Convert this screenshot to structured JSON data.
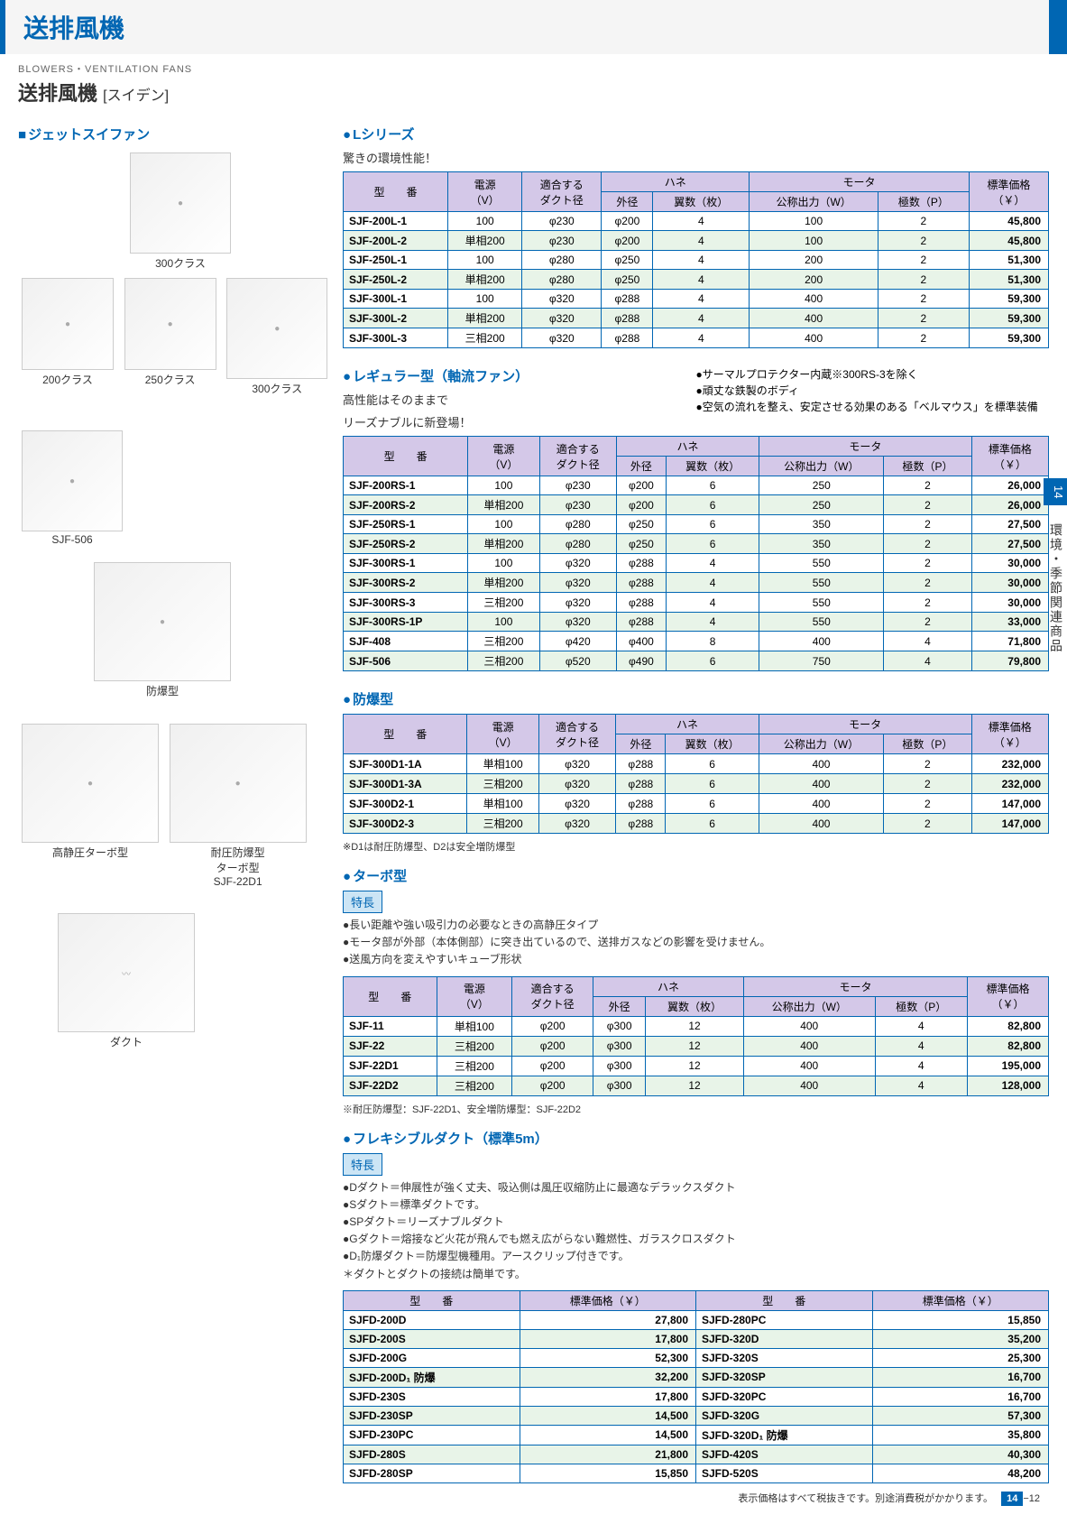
{
  "header": {
    "main": "送排風機",
    "en": "BLOWERS・VENTILATION FANS",
    "jp": "送排風機",
    "brand": "[スイデン]"
  },
  "left": {
    "jet_label": "ジェットスイファン",
    "imgs": [
      {
        "cap": "300クラス"
      },
      {
        "cap": "200クラス"
      },
      {
        "cap": "250クラス"
      },
      {
        "cap": "300クラス"
      },
      {
        "cap": "SJF-506"
      },
      {
        "cap": "防爆型"
      },
      {
        "cap": "高静圧ターボ型"
      },
      {
        "cap": "耐圧防爆型\\nターボ型\\nSJF-22D1"
      },
      {
        "cap": "ダクト"
      }
    ]
  },
  "l_series": {
    "title": "Lシリーズ",
    "sub": "驚きの環境性能！",
    "cols": {
      "model": "型　　番",
      "power": "電源\\n（V）",
      "duct": "適合する\\nダクト径",
      "fan": "ハネ",
      "od": "外径",
      "blades": "翼数（枚）",
      "motor": "モータ",
      "watt": "公称出力（W）",
      "poles": "極数（P）",
      "price": "標準価格\\n（￥）"
    },
    "rows": [
      {
        "m": "SJF-200L-1",
        "p": "100",
        "d": "φ230",
        "o": "φ200",
        "b": "4",
        "w": "100",
        "pl": "2",
        "pr": "45,800"
      },
      {
        "m": "SJF-200L-2",
        "p": "単相200",
        "d": "φ230",
        "o": "φ200",
        "b": "4",
        "w": "100",
        "pl": "2",
        "pr": "45,800",
        "alt": true
      },
      {
        "m": "SJF-250L-1",
        "p": "100",
        "d": "φ280",
        "o": "φ250",
        "b": "4",
        "w": "200",
        "pl": "2",
        "pr": "51,300"
      },
      {
        "m": "SJF-250L-2",
        "p": "単相200",
        "d": "φ280",
        "o": "φ250",
        "b": "4",
        "w": "200",
        "pl": "2",
        "pr": "51,300",
        "alt": true
      },
      {
        "m": "SJF-300L-1",
        "p": "100",
        "d": "φ320",
        "o": "φ288",
        "b": "4",
        "w": "400",
        "pl": "2",
        "pr": "59,300"
      },
      {
        "m": "SJF-300L-2",
        "p": "単相200",
        "d": "φ320",
        "o": "φ288",
        "b": "4",
        "w": "400",
        "pl": "2",
        "pr": "59,300",
        "alt": true
      },
      {
        "m": "SJF-300L-3",
        "p": "三相200",
        "d": "φ320",
        "o": "φ288",
        "b": "4",
        "w": "400",
        "pl": "2",
        "pr": "59,300"
      }
    ]
  },
  "reg": {
    "title": "レギュラー型（軸流ファン）",
    "sub1": "高性能はそのままで",
    "sub2": "リーズナブルに新登場！",
    "notes": [
      "●サーマルプロテクター内蔵※300RS-3を除く",
      "●頑丈な鉄製のボディ",
      "●空気の流れを整え、安定させる効果のある「ベルマウス」を標準装備"
    ],
    "rows": [
      {
        "m": "SJF-200RS-1",
        "p": "100",
        "d": "φ230",
        "o": "φ200",
        "b": "6",
        "w": "250",
        "pl": "2",
        "pr": "26,000"
      },
      {
        "m": "SJF-200RS-2",
        "p": "単相200",
        "d": "φ230",
        "o": "φ200",
        "b": "6",
        "w": "250",
        "pl": "2",
        "pr": "26,000",
        "alt": true
      },
      {
        "m": "SJF-250RS-1",
        "p": "100",
        "d": "φ280",
        "o": "φ250",
        "b": "6",
        "w": "350",
        "pl": "2",
        "pr": "27,500"
      },
      {
        "m": "SJF-250RS-2",
        "p": "単相200",
        "d": "φ280",
        "o": "φ250",
        "b": "6",
        "w": "350",
        "pl": "2",
        "pr": "27,500",
        "alt": true
      },
      {
        "m": "SJF-300RS-1",
        "p": "100",
        "d": "φ320",
        "o": "φ288",
        "b": "4",
        "w": "550",
        "pl": "2",
        "pr": "30,000"
      },
      {
        "m": "SJF-300RS-2",
        "p": "単相200",
        "d": "φ320",
        "o": "φ288",
        "b": "4",
        "w": "550",
        "pl": "2",
        "pr": "30,000",
        "alt": true
      },
      {
        "m": "SJF-300RS-3",
        "p": "三相200",
        "d": "φ320",
        "o": "φ288",
        "b": "4",
        "w": "550",
        "pl": "2",
        "pr": "30,000"
      },
      {
        "m": "SJF-300RS-1P",
        "p": "100",
        "d": "φ320",
        "o": "φ288",
        "b": "4",
        "w": "550",
        "pl": "2",
        "pr": "33,000",
        "alt": true
      },
      {
        "m": "SJF-408",
        "p": "三相200",
        "d": "φ420",
        "o": "φ400",
        "b": "8",
        "w": "400",
        "pl": "4",
        "pr": "71,800"
      },
      {
        "m": "SJF-506",
        "p": "三相200",
        "d": "φ520",
        "o": "φ490",
        "b": "6",
        "w": "750",
        "pl": "4",
        "pr": "79,800",
        "alt": true
      }
    ]
  },
  "ex": {
    "title": "防爆型",
    "rows": [
      {
        "m": "SJF-300D1-1A",
        "p": "単相100",
        "d": "φ320",
        "o": "φ288",
        "b": "6",
        "w": "400",
        "pl": "2",
        "pr": "232,000"
      },
      {
        "m": "SJF-300D1-3A",
        "p": "三相200",
        "d": "φ320",
        "o": "φ288",
        "b": "6",
        "w": "400",
        "pl": "2",
        "pr": "232,000",
        "alt": true
      },
      {
        "m": "SJF-300D2-1",
        "p": "単相100",
        "d": "φ320",
        "o": "φ288",
        "b": "6",
        "w": "400",
        "pl": "2",
        "pr": "147,000"
      },
      {
        "m": "SJF-300D2-3",
        "p": "三相200",
        "d": "φ320",
        "o": "φ288",
        "b": "6",
        "w": "400",
        "pl": "2",
        "pr": "147,000",
        "alt": true
      }
    ],
    "note": "※D1は耐圧防爆型、D2は安全増防爆型"
  },
  "turbo": {
    "title": "ターボ型",
    "feat_label": "特長",
    "feats": [
      "●長い距離や強い吸引力の必要なときの高静圧タイプ",
      "●モータ部が外部（本体側部）に突き出ているので、送排ガスなどの影響を受けません。",
      "●送風方向を変えやすいキューブ形状"
    ],
    "rows": [
      {
        "m": "SJF-11",
        "p": "単相100",
        "d": "φ200",
        "o": "φ300",
        "b": "12",
        "w": "400",
        "pl": "4",
        "pr": "82,800"
      },
      {
        "m": "SJF-22",
        "p": "三相200",
        "d": "φ200",
        "o": "φ300",
        "b": "12",
        "w": "400",
        "pl": "4",
        "pr": "82,800",
        "alt": true
      },
      {
        "m": "SJF-22D1",
        "p": "三相200",
        "d": "φ200",
        "o": "φ300",
        "b": "12",
        "w": "400",
        "pl": "4",
        "pr": "195,000"
      },
      {
        "m": "SJF-22D2",
        "p": "三相200",
        "d": "φ200",
        "o": "φ300",
        "b": "12",
        "w": "400",
        "pl": "4",
        "pr": "128,000",
        "alt": true
      }
    ],
    "note": "※耐圧防爆型：SJF-22D1、安全増防爆型：SJF-22D2"
  },
  "duct": {
    "title": "フレキシブルダクト（標準5m）",
    "feat_label": "特長",
    "feats": [
      "●Dダクト＝伸展性が強く丈夫、吸込側は風圧収縮防止に最適なデラックスダクト",
      "●Sダクト＝標準ダクトです。",
      "●SPダクト＝リーズナブルダクト",
      "●Gダクト＝熔接など火花が飛んでも燃え広がらない難燃性、ガラスクロスダクト",
      "●D₁防爆ダクト＝防爆型機種用。アースクリップ付きです。",
      "＊ダクトとダクトの接続は簡単です。"
    ],
    "cols": {
      "model": "型　　番",
      "price": "標準価格（￥）"
    },
    "rows": [
      {
        "m1": "SJFD-200D",
        "p1": "27,800",
        "m2": "SJFD-280PC",
        "p2": "15,850"
      },
      {
        "m1": "SJFD-200S",
        "p1": "17,800",
        "m2": "SJFD-320D",
        "p2": "35,200",
        "alt": true
      },
      {
        "m1": "SJFD-200G",
        "p1": "52,300",
        "m2": "SJFD-320S",
        "p2": "25,300"
      },
      {
        "m1": "SJFD-200D₁ 防爆",
        "p1": "32,200",
        "m2": "SJFD-320SP",
        "p2": "16,700",
        "alt": true
      },
      {
        "m1": "SJFD-230S",
        "p1": "17,800",
        "m2": "SJFD-320PC",
        "p2": "16,700"
      },
      {
        "m1": "SJFD-230SP",
        "p1": "14,500",
        "m2": "SJFD-320G",
        "p2": "57,300",
        "alt": true
      },
      {
        "m1": "SJFD-230PC",
        "p1": "14,500",
        "m2": "SJFD-320D₁ 防爆",
        "p2": "35,800"
      },
      {
        "m1": "SJFD-280S",
        "p1": "21,800",
        "m2": "SJFD-420S",
        "p2": "40,300",
        "alt": true
      },
      {
        "m1": "SJFD-280SP",
        "p1": "15,850",
        "m2": "SJFD-520S",
        "p2": "48,200"
      }
    ]
  },
  "footer": {
    "note": "表示価格はすべて税抜きです。別途消費税がかかります。",
    "page_sec": "14",
    "page_num": "−12"
  },
  "sidebar": {
    "num": "14",
    "text": "環境・季節関連商品"
  }
}
